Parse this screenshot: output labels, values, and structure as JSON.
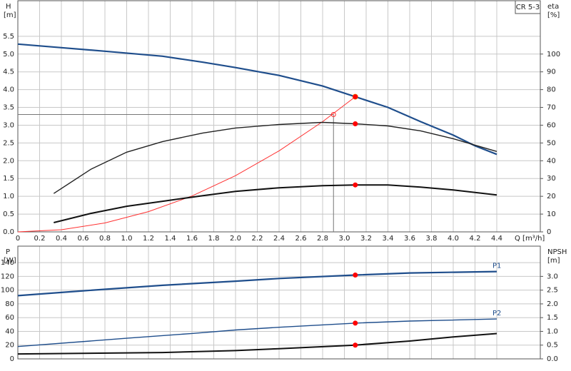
{
  "chart_data": [
    {
      "type": "line",
      "title": "CR 5-3",
      "xlabel": "Q [m³/h]",
      "ylabel": "H",
      "ylabel_unit": "[m]",
      "y2label": "eta",
      "y2label_unit": "[%]",
      "xlim": [
        0,
        4.8
      ],
      "xticks": [
        0,
        0.2,
        0.4,
        0.6,
        0.8,
        {
          "value": 1,
          "label": "1.0"
        },
        1.2,
        1.4,
        1.6,
        1.8,
        {
          "value": 2,
          "label": "2.0"
        },
        2.2,
        2.4,
        2.6,
        2.8,
        {
          "value": 3,
          "label": "3.0"
        },
        3.2,
        3.4,
        3.6,
        3.8,
        {
          "value": 4,
          "label": "4.0"
        },
        4.2,
        4.4
      ],
      "ylim": [
        0,
        6.5
      ],
      "yticks": [
        {
          "value": 0,
          "label": "0.0"
        },
        0.5,
        {
          "value": 1,
          "label": "1.0"
        },
        1.5,
        {
          "value": 2,
          "label": "2.0"
        },
        2.5,
        {
          "value": 3,
          "label": "3.0"
        },
        3.5,
        {
          "value": 4,
          "label": "4.0"
        },
        4.5,
        {
          "value": 5,
          "label": "5.0"
        },
        5.5
      ],
      "y2lim": [
        0,
        130
      ],
      "y2ticks": [
        0,
        10,
        20,
        30,
        40,
        50,
        60,
        70,
        80,
        90,
        100
      ],
      "grid": true,
      "highlight_x": 3.1,
      "reference": {
        "x": 2.9,
        "y": 3.3
      },
      "series": [
        {
          "color": "#1f4e8c",
          "line_width": 2.2,
          "marker_color": "#ffd700",
          "x": [
            0,
            0.4,
            0.8,
            1.33,
            1.7,
            2.0,
            2.4,
            2.8,
            3.1,
            3.4,
            3.7,
            4.0,
            4.2,
            4.4
          ],
          "values": [
            5.28,
            5.18,
            5.08,
            4.94,
            4.77,
            4.62,
            4.4,
            4.1,
            3.8,
            3.5,
            3.1,
            2.72,
            2.42,
            2.18
          ]
        },
        {
          "color": "#ff3030",
          "line_width": 1,
          "marker_color": "#ff0000",
          "x": [
            0,
            0.4,
            0.8,
            1.2,
            1.6,
            2.0,
            2.4,
            2.8,
            3.1
          ],
          "values": [
            0,
            0.06,
            0.25,
            0.57,
            1.01,
            1.58,
            2.28,
            3.1,
            3.8
          ]
        },
        {
          "color": "#222222",
          "line_width": 1.4,
          "marker_color": "#ff0000",
          "axis": "y2",
          "x": [
            0.33,
            0.67,
            1.0,
            1.33,
            1.7,
            2.0,
            2.4,
            2.8,
            3.1,
            3.4,
            3.7,
            4.0,
            4.2,
            4.4
          ],
          "values": [
            21.6,
            35.2,
            44.8,
            50.8,
            55.6,
            58.4,
            60.4,
            61.6,
            60.8,
            59.6,
            56.8,
            52.4,
            48.8,
            45.2
          ]
        },
        {
          "color": "#111111",
          "line_width": 2,
          "marker_color": "#ff0000",
          "axis": "y2",
          "x": [
            0.33,
            0.67,
            1.0,
            1.33,
            1.7,
            2.0,
            2.4,
            2.8,
            3.1,
            3.4,
            3.7,
            4.0,
            4.4
          ],
          "values": [
            5.2,
            10.4,
            14.4,
            17.2,
            20.4,
            22.8,
            24.8,
            26,
            26.4,
            26.4,
            25.2,
            23.6,
            20.8
          ]
        }
      ]
    },
    {
      "type": "line",
      "ylabel": "P",
      "ylabel_unit": "[W]",
      "y2label": "NPSH",
      "y2label_unit": "[m]",
      "xlim": [
        0,
        4.8
      ],
      "xticks": [
        0,
        0.2,
        0.4,
        0.6,
        0.8,
        1,
        1.2,
        1.4,
        1.6,
        1.8,
        2,
        2.2,
        2.4,
        2.6,
        2.8,
        3,
        3.2,
        3.4,
        3.6,
        3.8,
        4,
        4.2,
        4.4
      ],
      "xtick_labels": false,
      "ylim": [
        0,
        164
      ],
      "yticks": [
        0,
        20,
        40,
        60,
        80,
        100,
        120,
        140
      ],
      "y2lim": [
        0,
        4.1
      ],
      "y2ticks": [
        {
          "value": 0,
          "label": "0.0"
        },
        0.5,
        {
          "value": 1,
          "label": "1.0"
        },
        1.5,
        {
          "value": 2,
          "label": "2.0"
        },
        2.5,
        {
          "value": 3,
          "label": "3.0"
        }
      ],
      "grid": true,
      "highlight_x": 3.1,
      "series": [
        {
          "name": "P1",
          "color": "#1f4e8c",
          "line_width": 2.2,
          "marker_color": "#ff0000",
          "x": [
            0,
            0.6,
            1.33,
            2.0,
            2.4,
            3.1,
            3.6,
            4.4
          ],
          "values": [
            92,
            99,
            107,
            113,
            117,
            122,
            125,
            127
          ]
        },
        {
          "name": "P2",
          "color": "#1f4e8c",
          "line_width": 1.4,
          "marker_color": "#ff0000",
          "x": [
            0,
            1.0,
            1.6,
            2.0,
            2.4,
            3.1,
            3.6,
            4.4
          ],
          "values": [
            18,
            30,
            37,
            42,
            46,
            52,
            55,
            58
          ]
        },
        {
          "color": "#111111",
          "line_width": 2,
          "marker_color": "#ff0000",
          "axis": "y2",
          "x": [
            0,
            1.33,
            2.0,
            2.4,
            3.1,
            3.6,
            4.0,
            4.4
          ],
          "values": [
            0.18,
            0.23,
            0.3,
            0.37,
            0.5,
            0.65,
            0.8,
            0.92
          ]
        }
      ]
    }
  ]
}
